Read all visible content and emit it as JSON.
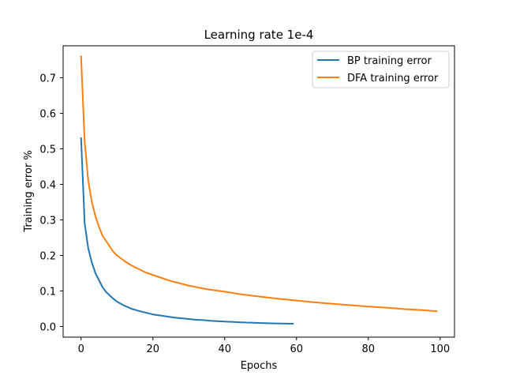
{
  "chart_data": {
    "type": "line",
    "title": "Learning rate 1e-4",
    "xlabel": "Epochs",
    "ylabel": "Training error %",
    "xlim": [
      -5,
      104
    ],
    "ylim": [
      -0.03,
      0.79
    ],
    "xticks": [
      0,
      20,
      40,
      60,
      80,
      100
    ],
    "yticks": [
      0.0,
      0.1,
      0.2,
      0.3,
      0.4,
      0.5,
      0.6,
      0.7
    ],
    "grid": false,
    "legend_position": "top-right",
    "series": [
      {
        "name": "BP training error",
        "color": "#1f77b4",
        "x": [
          0,
          1,
          2,
          3,
          4,
          5,
          6,
          7,
          8,
          9,
          10,
          12,
          14,
          16,
          18,
          20,
          22,
          24,
          26,
          28,
          30,
          32,
          34,
          36,
          38,
          40,
          42,
          44,
          46,
          48,
          50,
          52,
          54,
          56,
          59
        ],
        "y": [
          0.53,
          0.29,
          0.22,
          0.18,
          0.15,
          0.13,
          0.11,
          0.097,
          0.087,
          0.078,
          0.07,
          0.059,
          0.05,
          0.044,
          0.039,
          0.034,
          0.031,
          0.028,
          0.025,
          0.023,
          0.021,
          0.019,
          0.018,
          0.016,
          0.015,
          0.014,
          0.013,
          0.012,
          0.011,
          0.0105,
          0.0098,
          0.0092,
          0.0087,
          0.0083,
          0.0078
        ]
      },
      {
        "name": "DFA training error",
        "color": "#ff7f0e",
        "x": [
          0,
          1,
          2,
          3,
          4,
          5,
          6,
          7,
          8,
          9,
          10,
          12,
          14,
          16,
          18,
          20,
          25,
          30,
          35,
          40,
          45,
          50,
          55,
          60,
          65,
          70,
          75,
          80,
          85,
          90,
          95,
          99
        ],
        "y": [
          0.76,
          0.52,
          0.41,
          0.35,
          0.31,
          0.28,
          0.255,
          0.24,
          0.225,
          0.21,
          0.2,
          0.185,
          0.172,
          0.162,
          0.152,
          0.145,
          0.128,
          0.115,
          0.105,
          0.098,
          0.09,
          0.084,
          0.078,
          0.073,
          0.068,
          0.064,
          0.06,
          0.056,
          0.053,
          0.049,
          0.046,
          0.043
        ]
      }
    ]
  }
}
